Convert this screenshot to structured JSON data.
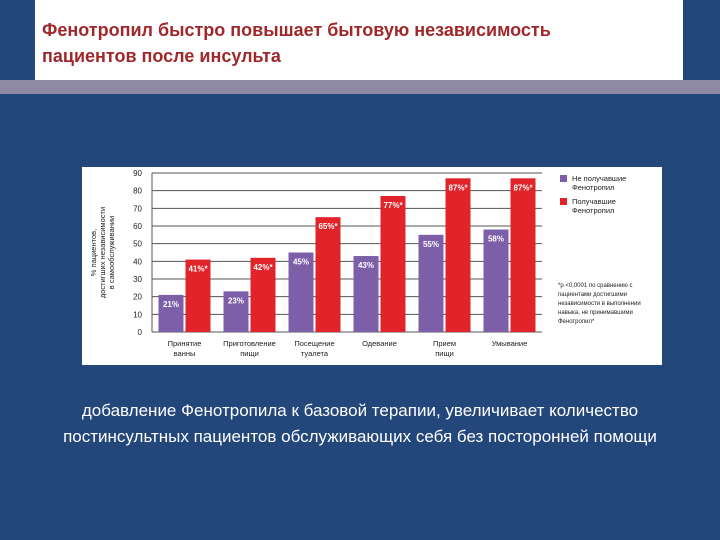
{
  "header": {
    "title_line1": "Фенотропил быстро повышает бытовую независимость",
    "title_line2": "пациентов после инсульта"
  },
  "colors": {
    "background": "#23477a",
    "title": "#a0282b",
    "accent_bar": "#8f8aa4",
    "series_not_receiving": "#7c5fa8",
    "series_receiving": "#e0242a"
  },
  "chart_data": {
    "type": "bar",
    "title": "",
    "ylabel_lines": [
      "% пациентов,",
      "достигших независимости",
      "в самообслуживании"
    ],
    "xlabel": "",
    "ylim": [
      0,
      90
    ],
    "yticks": [
      0,
      10,
      20,
      30,
      40,
      50,
      60,
      70,
      80,
      90
    ],
    "grid": true,
    "categories": [
      [
        "Принятие",
        "ванны"
      ],
      [
        "Приготовление",
        "пищи"
      ],
      [
        "Посещение",
        "туалета"
      ],
      [
        "Одевание",
        ""
      ],
      [
        "Прием",
        "пищи"
      ],
      [
        "Умывание",
        ""
      ]
    ],
    "series": [
      {
        "legend_lines": [
          "Не получавшие",
          "Фенотропил"
        ],
        "color": "#7c5fa8",
        "values": [
          21,
          23,
          45,
          43,
          55,
          58
        ],
        "labels": [
          "21%",
          "23%",
          "45%",
          "43%",
          "55%",
          "58%"
        ]
      },
      {
        "legend_lines": [
          "Получавшие",
          "Фенотропил"
        ],
        "color": "#e0242a",
        "values": [
          41,
          42,
          65,
          77,
          87,
          87
        ],
        "labels": [
          "41%*",
          "42%*",
          "65%*",
          "77%*",
          "87%*",
          "87%*"
        ]
      }
    ],
    "legend_position": "right",
    "footnote_lines": [
      "*р <0,0001 по сравнению с",
      "пациентами достигшими",
      "независимости в выполнении",
      "навыка, не принимавшими",
      "Фенотропил*"
    ]
  },
  "main": {
    "body_text": "добавление Фенотропила к базовой терапии, увеличивает количество постинсультных пациентов обслуживающих себя без посторонней помощи"
  }
}
